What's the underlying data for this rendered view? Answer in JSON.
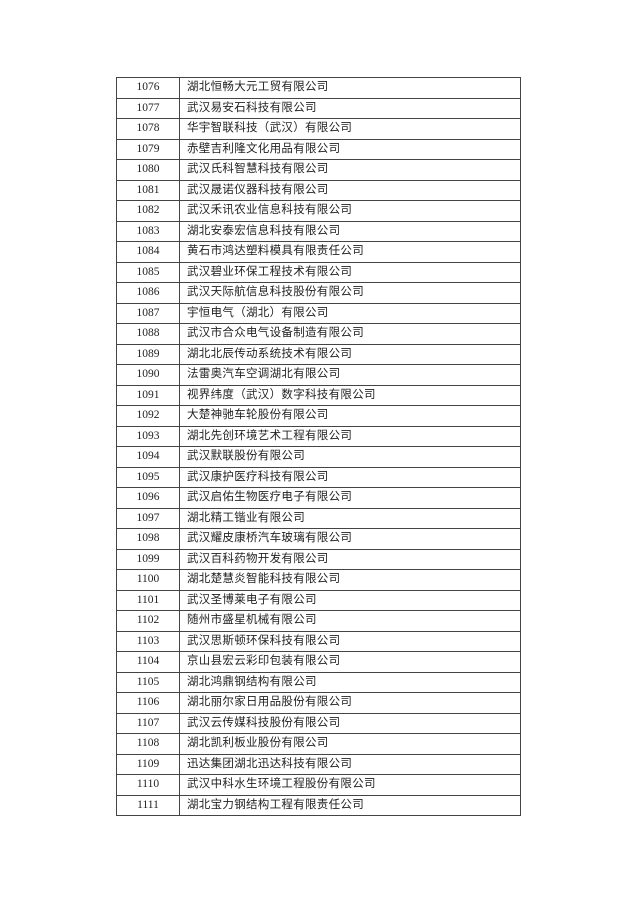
{
  "table": {
    "rows": [
      [
        "1076",
        "湖北恒畅大元工贸有限公司"
      ],
      [
        "1077",
        "武汉易安石科技有限公司"
      ],
      [
        "1078",
        "华宇智联科技（武汉）有限公司"
      ],
      [
        "1079",
        "赤壁吉利隆文化用品有限公司"
      ],
      [
        "1080",
        "武汉氏科智慧科技有限公司"
      ],
      [
        "1081",
        "武汉晟诺仪器科技有限公司"
      ],
      [
        "1082",
        "武汉禾讯农业信息科技有限公司"
      ],
      [
        "1083",
        "湖北安泰宏信息科技有限公司"
      ],
      [
        "1084",
        "黄石市鸿达塑料模具有限责任公司"
      ],
      [
        "1085",
        "武汉碧业环保工程技术有限公司"
      ],
      [
        "1086",
        "武汉天际航信息科技股份有限公司"
      ],
      [
        "1087",
        "宇恒电气（湖北）有限公司"
      ],
      [
        "1088",
        "武汉市合众电气设备制造有限公司"
      ],
      [
        "1089",
        "湖北北辰传动系统技术有限公司"
      ],
      [
        "1090",
        "法雷奥汽车空调湖北有限公司"
      ],
      [
        "1091",
        "视界纬度（武汉）数字科技有限公司"
      ],
      [
        "1092",
        "大楚神驰车轮股份有限公司"
      ],
      [
        "1093",
        "湖北先创环境艺术工程有限公司"
      ],
      [
        "1094",
        "武汉默联股份有限公司"
      ],
      [
        "1095",
        "武汉康护医疗科技有限公司"
      ],
      [
        "1096",
        "武汉启佑生物医疗电子有限公司"
      ],
      [
        "1097",
        "湖北精工锴业有限公司"
      ],
      [
        "1098",
        "武汉耀皮康桥汽车玻璃有限公司"
      ],
      [
        "1099",
        "武汉百科药物开发有限公司"
      ],
      [
        "1100",
        "湖北楚慧炎智能科技有限公司"
      ],
      [
        "1101",
        "武汉圣博莱电子有限公司"
      ],
      [
        "1102",
        "随州市盛星机械有限公司"
      ],
      [
        "1103",
        "武汉思斯顿环保科技有限公司"
      ],
      [
        "1104",
        "京山县宏云彩印包装有限公司"
      ],
      [
        "1105",
        "湖北鸿鼎钢结构有限公司"
      ],
      [
        "1106",
        "湖北丽尔家日用品股份有限公司"
      ],
      [
        "1107",
        "武汉云传媒科技股份有限公司"
      ],
      [
        "1108",
        "湖北凯利板业股份有限公司"
      ],
      [
        "1109",
        "迅达集团湖北迅达科技有限公司"
      ],
      [
        "1110",
        "武汉中科水生环境工程股份有限公司"
      ],
      [
        "1111",
        "湖北宝力钢结构工程有限责任公司"
      ]
    ]
  }
}
